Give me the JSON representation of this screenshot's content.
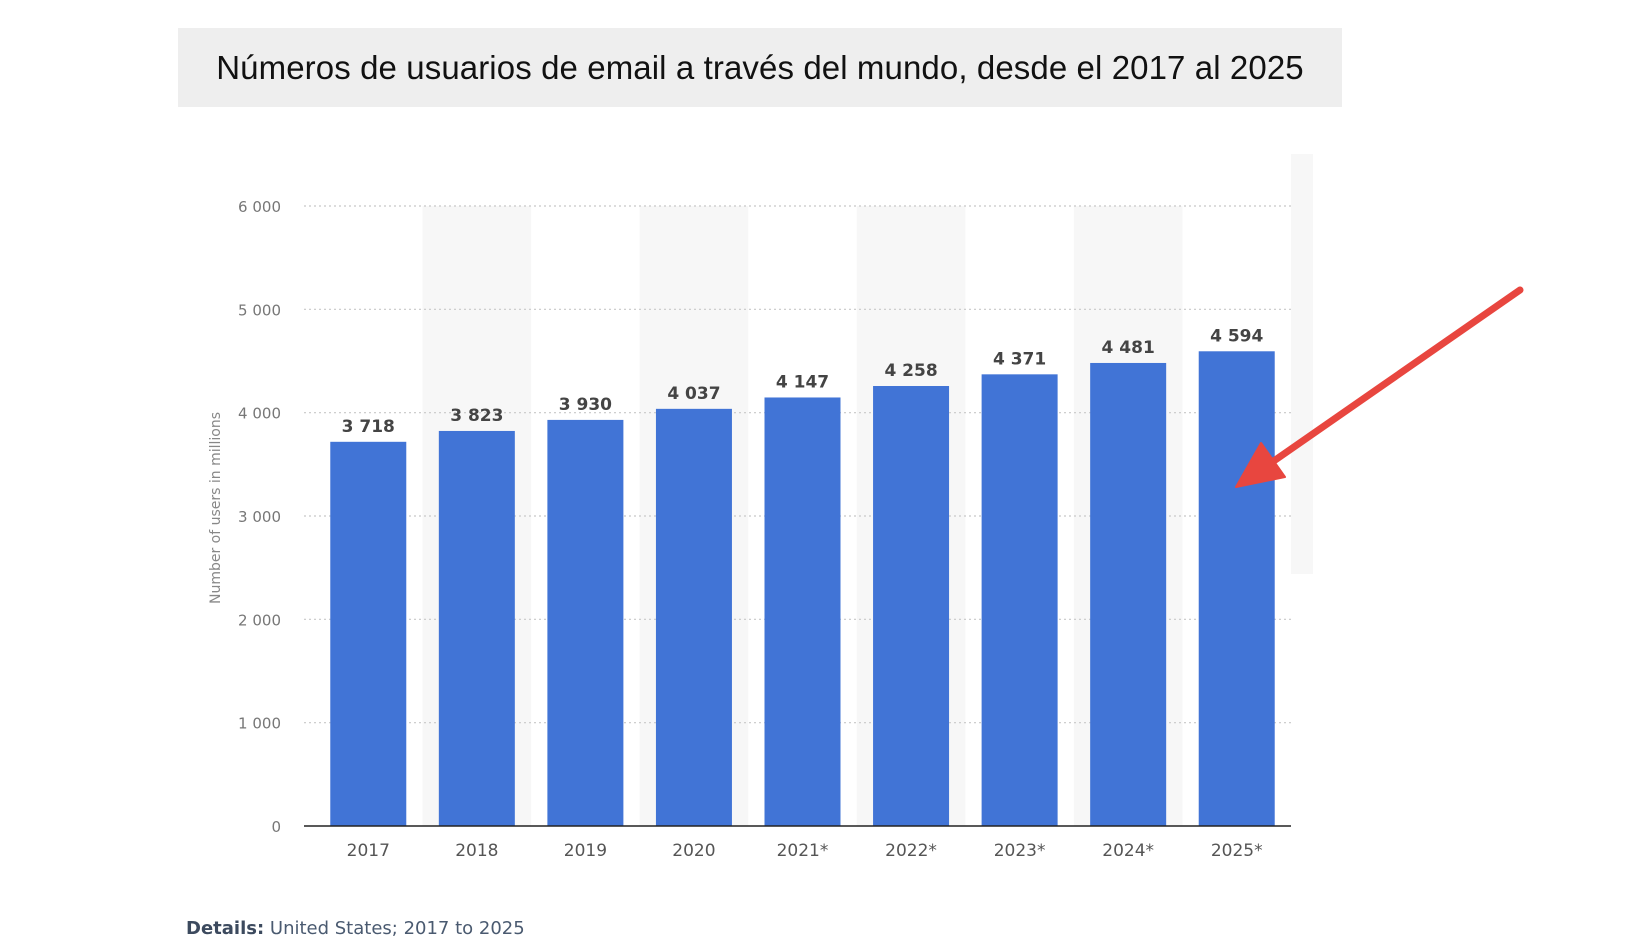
{
  "title": "Números de usuarios de email a través del mundo, desde el 2017 al 2025",
  "details": {
    "label": "Details:",
    "text": "United States; 2017 to 2025"
  },
  "colors": {
    "bar": "#4174d6",
    "arrow": "#e8463f",
    "grid": "#c8c8c8",
    "band": "#f7f7f7",
    "axis": "#222222"
  },
  "chart_data": {
    "type": "bar",
    "title": "Números de usuarios de email a través del mundo, desde el 2017 al 2025",
    "xlabel": "",
    "ylabel": "Number of users in millions",
    "categories": [
      "2017",
      "2018",
      "2019",
      "2020",
      "2021*",
      "2022*",
      "2023*",
      "2024*",
      "2025*"
    ],
    "values": [
      3718,
      3823,
      3930,
      4037,
      4147,
      4258,
      4371,
      4481,
      4594
    ],
    "value_labels": [
      "3 718",
      "3 823",
      "3 930",
      "4 037",
      "4 147",
      "4 258",
      "4 371",
      "4 481",
      "4 594"
    ],
    "yticks": [
      0,
      1000,
      2000,
      3000,
      4000,
      5000,
      6000
    ],
    "ytick_labels": [
      "0",
      "1 000",
      "2 000",
      "3 000",
      "4 000",
      "5 000",
      "6 000"
    ],
    "ylim": [
      0,
      6000
    ],
    "grid": true,
    "legend": "none"
  },
  "annotation": {
    "type": "arrow",
    "points_to": "2025*"
  }
}
